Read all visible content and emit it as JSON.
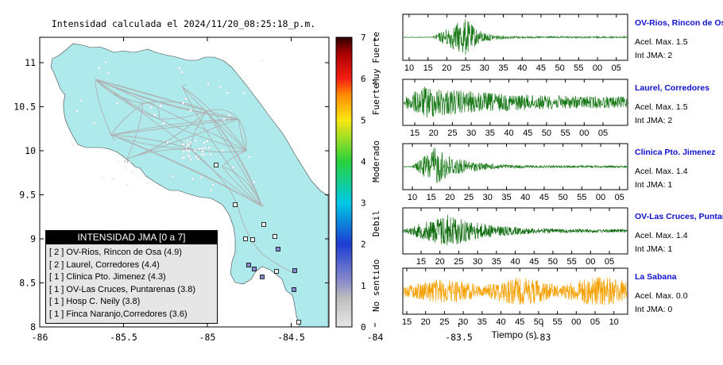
{
  "map": {
    "title": "Intensidad calculada el 2024/11/20_08:25:18_p.m.",
    "x_ticks": [
      "-86",
      "-85.5",
      "-85",
      "-84.5",
      "-84",
      "-83.5",
      "-83"
    ],
    "y_ticks": [
      "8",
      "8.5",
      "9",
      "9.5",
      "10",
      "10.5",
      "11"
    ],
    "colors": {
      "land": "#aee9ec",
      "ocean": "#ffffff",
      "roads": "#b0b0b0"
    }
  },
  "colorbar": {
    "ticks": [
      "0",
      "1",
      "2",
      "3",
      "4",
      "5",
      "6",
      "7"
    ],
    "labels": [
      "No sentido",
      "Debil",
      "Moderado",
      "Fuerte",
      "Muy Fuerte"
    ]
  },
  "legend": {
    "title": "INTENSIDAD JMA [0 a 7]",
    "items": [
      "[ 2 ]  OV-Rios, Rincon de Osa (4.9)",
      "[ 2 ]  Laurel, Corredores (4.4)",
      "[ 1 ]  Clinica Pto. Jimenez (4.3)",
      "[ 1 ]  OV-Las Cruces, Puntarenas (3.8)",
      "[ 1 ]  Hosp C. Neily (3.8)",
      "[ 1 ]  Finca Naranjo,Corredores (3.6)"
    ]
  },
  "waveforms": {
    "xlabel": "Tiempo (s)",
    "panels": [
      {
        "station": "OV-Rios, Rincon de Os",
        "accel": "Acel. Max. 1.5",
        "int": "Int JMA: 2",
        "color": "#1a7a1a",
        "ticks": [
          "10",
          "15",
          "20",
          "25",
          "30",
          "35",
          "40",
          "45",
          "50",
          "55",
          "00",
          "05"
        ]
      },
      {
        "station": "Laurel, Corredores",
        "accel": "Acel. Max. 1.5",
        "int": "Int JMA: 2",
        "color": "#1a7a1a",
        "ticks": [
          "15",
          "20",
          "25",
          "30",
          "35",
          "40",
          "45",
          "50",
          "55",
          "00",
          "05"
        ]
      },
      {
        "station": "Clinica Pto. Jimenez",
        "accel": "Acel. Max. 1.4",
        "int": "Int JMA: 1",
        "color": "#1a7a1a",
        "ticks": [
          "10",
          "15",
          "20",
          "25",
          "30",
          "35",
          "40",
          "45",
          "50",
          "55",
          "00",
          "05"
        ]
      },
      {
        "station": "OV-Las Cruces, Puntar",
        "accel": "Acel. Max. 1.4",
        "int": "Int JMA: 1",
        "color": "#0d6b0d",
        "ticks": [
          "15",
          "20",
          "25",
          "30",
          "35",
          "40",
          "45",
          "50",
          "55",
          "00",
          "05"
        ]
      },
      {
        "station": "La Sabana",
        "accel": "Acel. Max. 0.0",
        "int": "Int JMA: 0",
        "color": "#f5a000",
        "ticks": [
          "15",
          "20",
          "25",
          "30",
          "35",
          "40",
          "45",
          "50",
          "55",
          "00",
          "05",
          "10"
        ]
      }
    ]
  }
}
